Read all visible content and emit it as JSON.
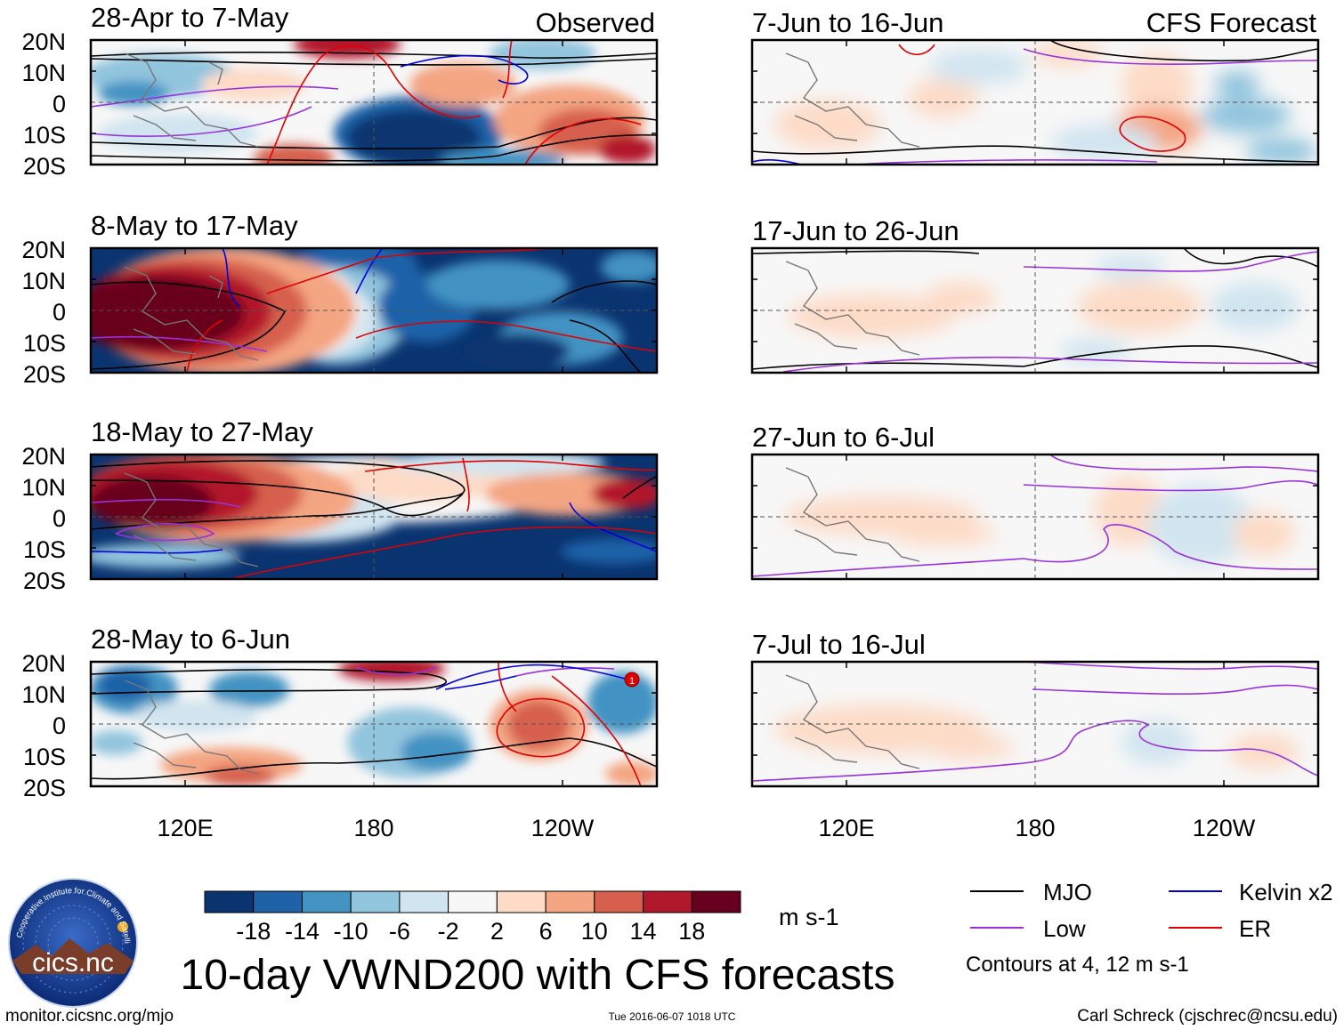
{
  "chart_data": {
    "type": "heatmap",
    "title": "10-day VWND200 with CFS forecasts",
    "variable": "VWND200",
    "units": "m s-1",
    "column_headers": {
      "observed": "Observed",
      "forecast": "CFS Forecast"
    },
    "axes": {
      "x_ticks": [
        "120E",
        "180",
        "120W"
      ],
      "y_ticks": [
        "20N",
        "10N",
        "0",
        "10S",
        "20S"
      ],
      "x_range_deg": [
        90,
        270
      ],
      "y_range_deg": [
        -20,
        20
      ]
    },
    "colorbar": {
      "ticks": [
        "-18",
        "-14",
        "-10",
        "-6",
        "-2",
        "2",
        "6",
        "10",
        "14",
        "18"
      ],
      "colors": [
        "#0a3470",
        "#1f62a8",
        "#4393c3",
        "#92c5de",
        "#d1e5f0",
        "#f7f7f7",
        "#fddbc7",
        "#f4a582",
        "#d6604d",
        "#b2182b",
        "#67001f"
      ]
    },
    "panels": [
      {
        "column": "observed",
        "period": "28-Apr to 7-May",
        "mean_sign": "mixed"
      },
      {
        "column": "observed",
        "period": "8-May to 17-May",
        "mean_sign": "strong positive west, negative east"
      },
      {
        "column": "observed",
        "period": "18-May to 27-May",
        "mean_sign": "positive north, negative south"
      },
      {
        "column": "observed",
        "period": "28-May to 6-Jun",
        "mean_sign": "mixed"
      },
      {
        "column": "forecast",
        "period": "7-Jun to 16-Jun",
        "mean_sign": "weak"
      },
      {
        "column": "forecast",
        "period": "17-Jun to 26-Jun",
        "mean_sign": "weak"
      },
      {
        "column": "forecast",
        "period": "27-Jun to 6-Jul",
        "mean_sign": "weak"
      },
      {
        "column": "forecast",
        "period": "7-Jul to 16-Jul",
        "mean_sign": "weak"
      }
    ],
    "legend": {
      "items": [
        {
          "label": "MJO",
          "color": "#000000"
        },
        {
          "label": "Kelvin x2",
          "color": "#0000dd"
        },
        {
          "label": "Low",
          "color": "#9932dd"
        },
        {
          "label": "ER",
          "color": "#e00000"
        }
      ],
      "note": "Contours at 4, 12 m s-1"
    },
    "markers": [
      {
        "label": "1",
        "panel": "28-May to 6-Jun",
        "lon": 262,
        "lat": 15
      }
    ]
  },
  "footer": {
    "left": "monitor.cicsnc.org/mjo",
    "center": "Tue 2016-06-07 1018 UTC",
    "right": "Carl Schreck (cjschrec@ncsu.edu)"
  },
  "logo": {
    "text": "cics.nc",
    "ring_text": "Cooperative Institute for Climate and Satellites"
  }
}
